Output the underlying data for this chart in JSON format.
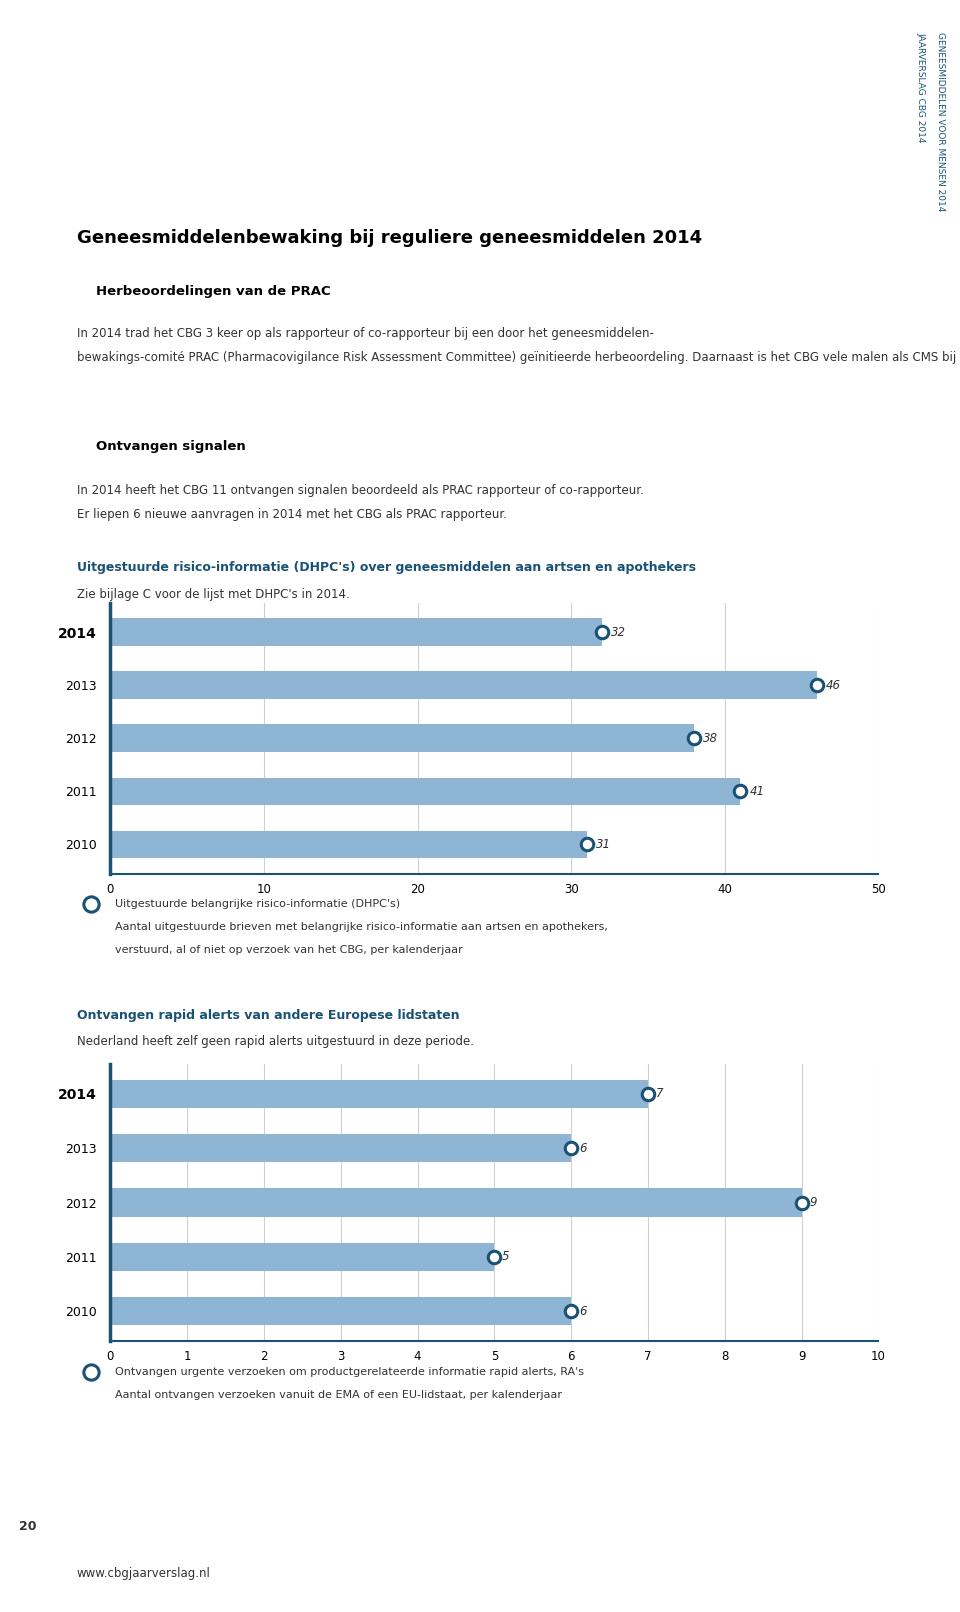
{
  "page_title": "Geneesmiddelenbewaking bij reguliere geneesmiddelen 2014",
  "sidebar_line1": "JAARVERSLAG CBG 2014",
  "sidebar_line2": "GENEESMIDDELEN VOOR MENSEN 2014",
  "section1_title": "Herbeoordelingen van de PRAC",
  "section1_body_line1": "In 2014 trad het CBG 3 keer op als rapporteur of co-rapporteur bij een door het geneesmiddelen-",
  "section1_body_line2": "bewakings-comité PRAC (Pharmacovigilance Risk Assessment Committee) geïnitieerde herbeoordeling. Daarnaast is het CBG vele malen als CMS bij PRAC procedures betrokken geweest.",
  "section2_title": "Ontvangen signalen",
  "section2_body_line1": "In 2014 heeft het CBG 11 ontvangen signalen beoordeeld als PRAC rapporteur of co-rapporteur.",
  "section2_body_line2": "Er liepen 6 nieuwe aanvragen in 2014 met het CBG als PRAC rapporteur.",
  "chart1_title": "Uitgestuurde risico-informatie (DHPC's) over geneesmiddelen aan artsen en apothekers",
  "chart1_subtitle": "Zie bijlage C voor de lijst met DHPC's in 2014.",
  "chart1_years": [
    "2014",
    "2013",
    "2012",
    "2011",
    "2010"
  ],
  "chart1_values": [
    32,
    46,
    38,
    41,
    31
  ],
  "chart1_xlim": [
    0,
    50
  ],
  "chart1_xticks": [
    0,
    10,
    20,
    30,
    40,
    50
  ],
  "chart1_legend_line1": "Uitgestuurde belangrijke risico-informatie (DHPC's)",
  "chart1_legend_line2": "Aantal uitgestuurde brieven met belangrijke risico-informatie aan artsen en apothekers,",
  "chart1_legend_line3": "verstuurd, al of niet op verzoek van het CBG, per kalenderjaar",
  "chart2_title": "Ontvangen rapid alerts van andere Europese lidstaten",
  "chart2_subtitle": "Nederland heeft zelf geen rapid alerts uitgestuurd in deze periode.",
  "chart2_years": [
    "2014",
    "2013",
    "2012",
    "2011",
    "2010"
  ],
  "chart2_values": [
    7,
    6,
    9,
    5,
    6
  ],
  "chart2_xlim": [
    0,
    10
  ],
  "chart2_xticks": [
    0,
    1,
    2,
    3,
    4,
    5,
    6,
    7,
    8,
    9,
    10
  ],
  "chart2_legend_line1": "Ontvangen urgente verzoeken om productgerelateerde informatie rapid alerts, RA's",
  "chart2_legend_line2": "Aantal ontvangen verzoeken vanuit de EMA of een EU-lidstaat, per kalenderjaar",
  "footer_text": "www.cbgjaarverslag.nl",
  "page_number": "20",
  "bar_color": "#8fb5d5",
  "dot_edge_color": "#1a5276",
  "dot_face_color": "#ffffff",
  "title_color": "#1a5276",
  "text_color": "#333333",
  "axis_line_color": "#1a5276",
  "grid_color": "#d0d0d0",
  "bg_color": "#ffffff",
  "sidebar_color": "#1a5276"
}
